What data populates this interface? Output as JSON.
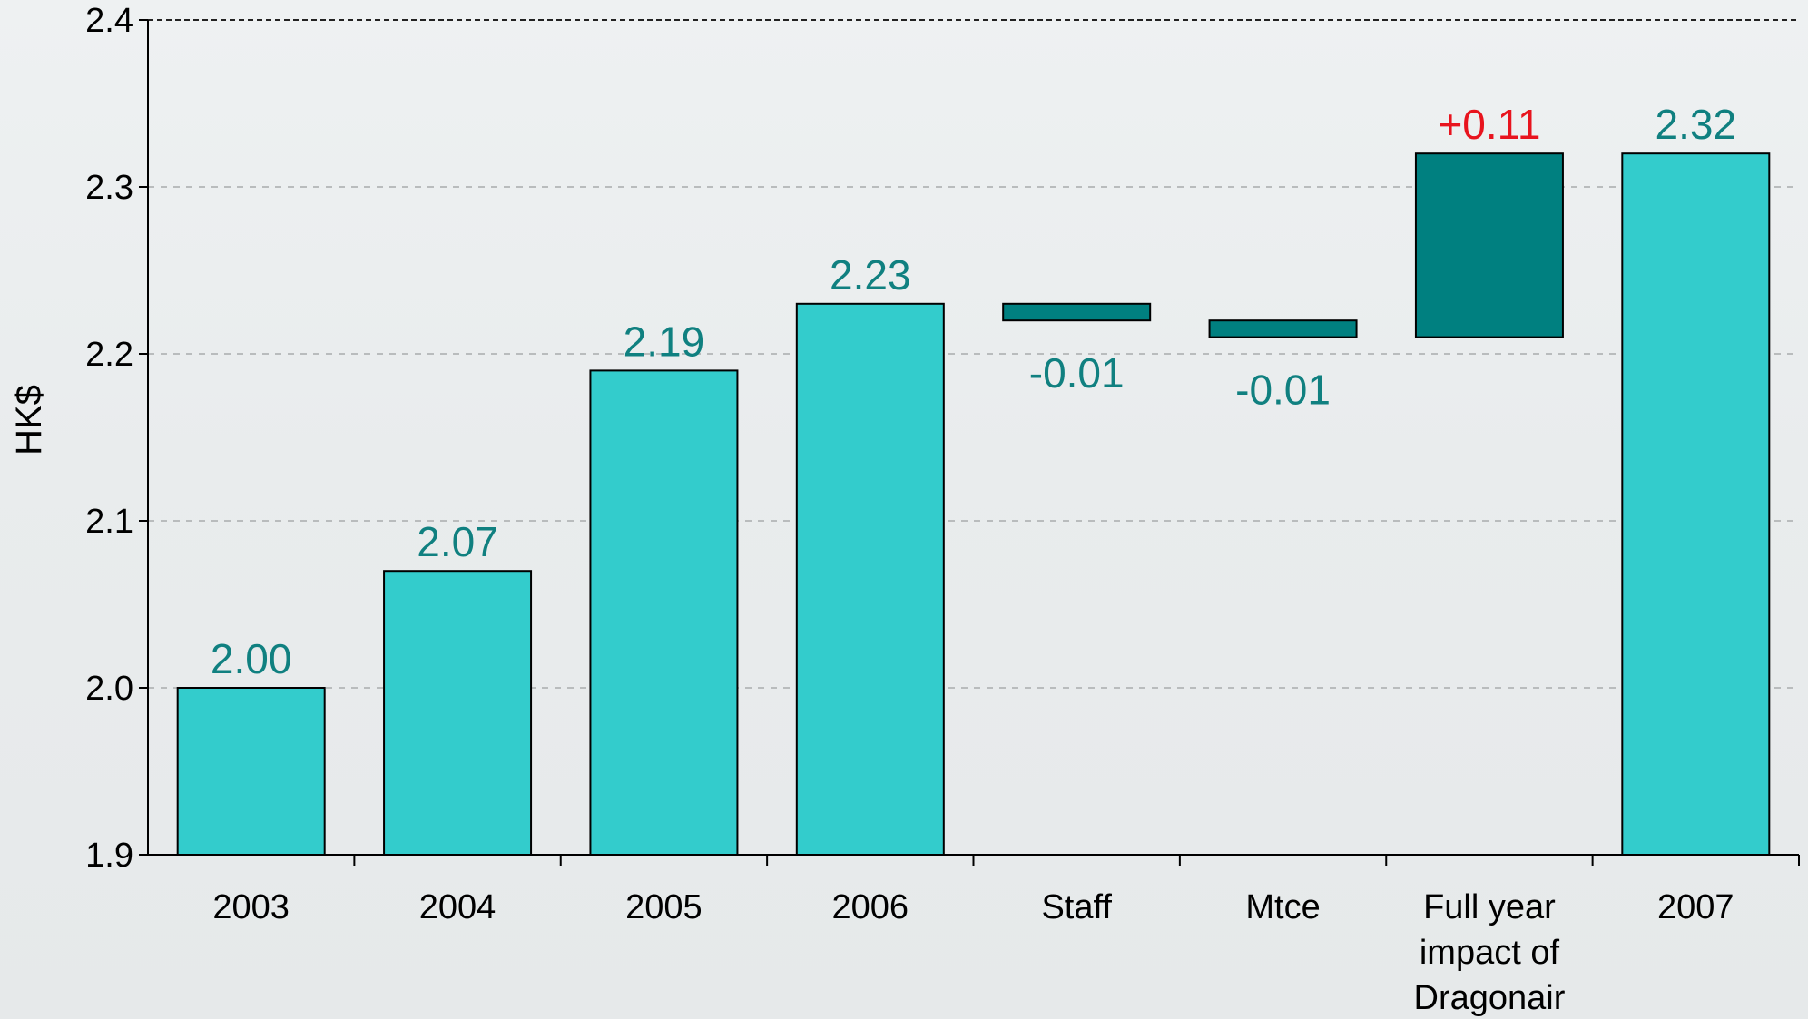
{
  "chart_data": {
    "type": "bar",
    "variant": "waterfall",
    "title": "",
    "xlabel": "",
    "ylabel": "HK$",
    "ylim": [
      1.9,
      2.4
    ],
    "yticks": [
      "1.9",
      "2.0",
      "2.1",
      "2.2",
      "2.3",
      "2.4"
    ],
    "grid": "horizontal dashed",
    "categories": [
      [
        "2003"
      ],
      [
        "2004"
      ],
      [
        "2005"
      ],
      [
        "2006"
      ],
      [
        "Staff"
      ],
      [
        "Mtce"
      ],
      [
        "Full year",
        "impact of",
        "Dragonair"
      ],
      [
        "2007"
      ]
    ],
    "bars": [
      {
        "low": 1.9,
        "high": 2.0,
        "label": "2.00",
        "kind": "total"
      },
      {
        "low": 1.9,
        "high": 2.07,
        "label": "2.07",
        "kind": "total"
      },
      {
        "low": 1.9,
        "high": 2.19,
        "label": "2.19",
        "kind": "total"
      },
      {
        "low": 1.9,
        "high": 2.23,
        "label": "2.23",
        "kind": "total"
      },
      {
        "low": 2.22,
        "high": 2.23,
        "label": "-0.01",
        "kind": "decrease"
      },
      {
        "low": 2.21,
        "high": 2.22,
        "label": "-0.01",
        "kind": "decrease"
      },
      {
        "low": 2.21,
        "high": 2.32,
        "label": "+0.11",
        "kind": "increase"
      },
      {
        "low": 1.9,
        "high": 2.32,
        "label": "2.32",
        "kind": "total"
      }
    ],
    "colors": {
      "total": "#33cccc",
      "delta": "#008080",
      "label_default": "#108080",
      "label_increase": "#e8141e",
      "grid": "#b9bcbd"
    }
  }
}
